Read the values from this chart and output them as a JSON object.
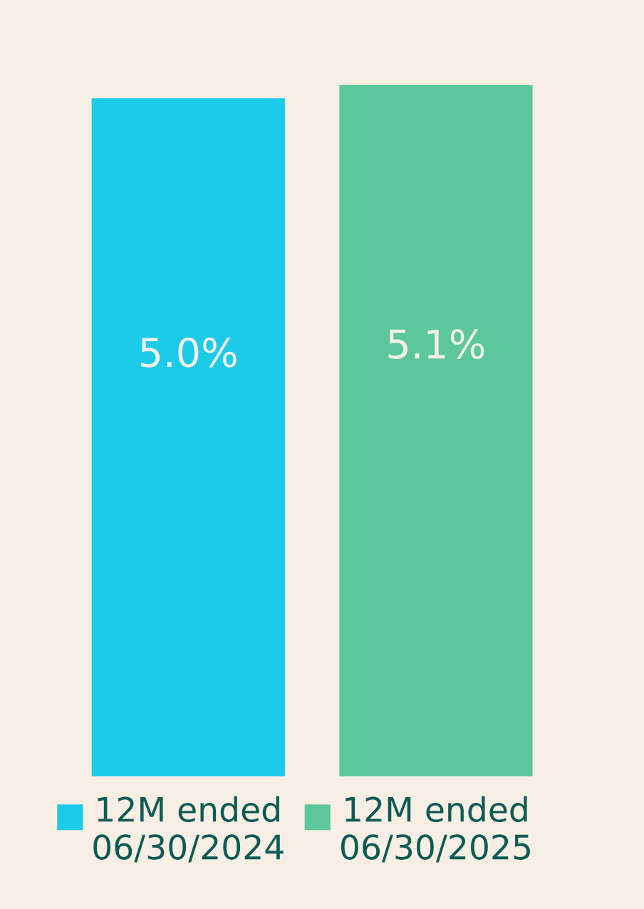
{
  "chart_data": {
    "type": "bar",
    "categories": [
      "12M ended\n06/30/2024",
      "12M ended\n06/30/2025"
    ],
    "values": [
      5.0,
      5.1
    ],
    "colors": [
      "#1ccbe8",
      "#5cc79a"
    ],
    "value_labels": [
      "5.0%",
      "5.1%"
    ],
    "tick_labels": "x"
  }
}
